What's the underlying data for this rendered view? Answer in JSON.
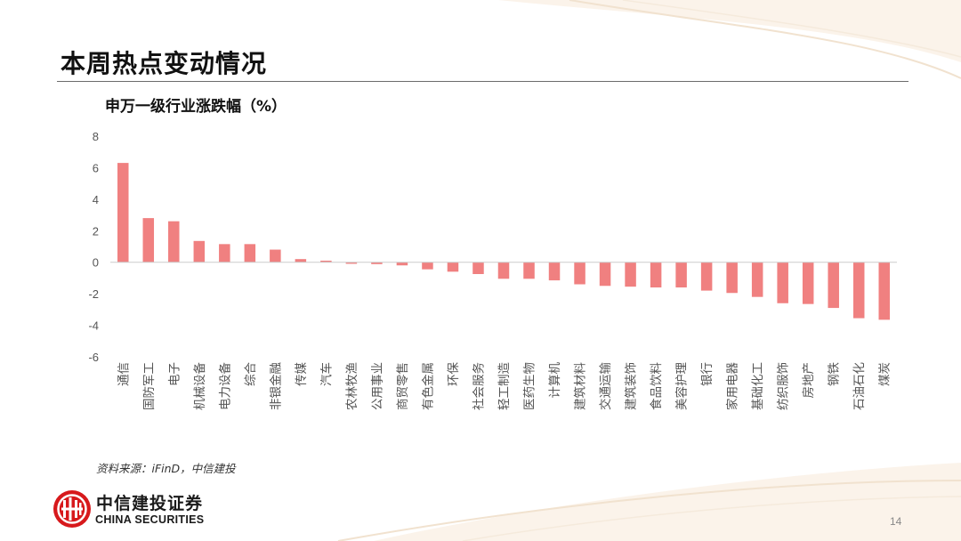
{
  "slide": {
    "title": "本周热点变动情况",
    "source": "资料来源：iFinD，中信建投",
    "page_number": "14"
  },
  "logo": {
    "name_cn": "中信建投证券",
    "name_en": "CHINA SECURITIES",
    "accent_color": "#d7191c"
  },
  "colors": {
    "bar": "#f08080",
    "axis": "#cccccc",
    "text": "#555555"
  },
  "chart_data": {
    "type": "bar",
    "title": "申万一级行业涨跌幅（%）",
    "xlabel": "",
    "ylabel": "",
    "ylim": [
      -6,
      8
    ],
    "yticks": [
      8,
      6,
      4,
      2,
      0,
      -2,
      -4,
      -6
    ],
    "grid": false,
    "legend": "none",
    "categories": [
      "通信",
      "国防军工",
      "电子",
      "机械设备",
      "电力设备",
      "综合",
      "非银金融",
      "传媒",
      "汽车",
      "农林牧渔",
      "公用事业",
      "商贸零售",
      "有色金属",
      "环保",
      "社会服务",
      "轻工制造",
      "医药生物",
      "计算机",
      "建筑材料",
      "交通运输",
      "建筑装饰",
      "食品饮料",
      "美容护理",
      "银行",
      "家用电器",
      "基础化工",
      "纺织服饰",
      "房地产",
      "钢铁",
      "石油石化",
      "煤炭"
    ],
    "values": [
      6.3,
      2.8,
      2.6,
      1.35,
      1.15,
      1.15,
      0.8,
      0.2,
      0.1,
      -0.1,
      -0.12,
      -0.2,
      -0.45,
      -0.6,
      -0.75,
      -1.05,
      -1.05,
      -1.15,
      -1.4,
      -1.5,
      -1.55,
      -1.6,
      -1.6,
      -1.8,
      -1.95,
      -2.2,
      -2.6,
      -2.65,
      -2.9,
      -3.55,
      -3.65
    ]
  }
}
